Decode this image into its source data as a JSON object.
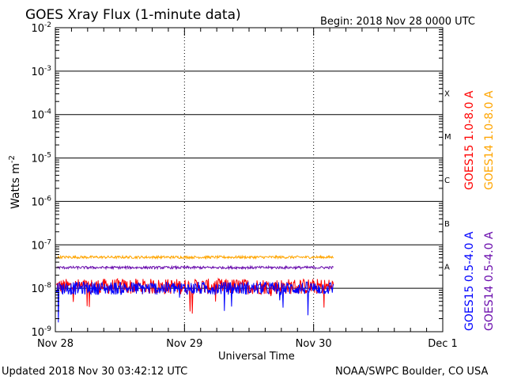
{
  "chart_data": {
    "type": "line",
    "title": "GOES Xray Flux (1-minute data)",
    "begin_label": "Begin:  2018 Nov 28 0000 UTC",
    "xlabel": "Universal Time",
    "ylabel": "Watts m",
    "ylabel_exponent": "-2",
    "x_ticks": [
      "Nov 28",
      "Nov 29",
      "Nov 30",
      "Dec 1"
    ],
    "xlim_days": [
      0,
      3
    ],
    "y_log_scale": true,
    "ylim": [
      1e-09,
      0.01
    ],
    "y_ticks": [
      {
        "base": "10",
        "exp": "-9"
      },
      {
        "base": "10",
        "exp": "-8"
      },
      {
        "base": "10",
        "exp": "-7"
      },
      {
        "base": "10",
        "exp": "-6"
      },
      {
        "base": "10",
        "exp": "-5"
      },
      {
        "base": "10",
        "exp": "-4"
      },
      {
        "base": "10",
        "exp": "-3"
      },
      {
        "base": "10",
        "exp": "-2"
      }
    ],
    "flare_classes": [
      "A",
      "B",
      "C",
      "M",
      "X"
    ],
    "data_end_day": 2.155,
    "series": [
      {
        "name": "GOES15 1.0-8.0 A",
        "color": "#ff0000",
        "level": 1.1e-08,
        "noise_decades": 0.18
      },
      {
        "name": "GOES14 1.0-8.0 A",
        "color": "#ffa500",
        "level": 5.2e-08,
        "noise_decades": 0.03
      },
      {
        "name": "GOES15 0.5-4.0 A",
        "color": "#0000ff",
        "level": 1e-08,
        "noise_decades": 0.15
      },
      {
        "name": "GOES14 0.5-4.0 A",
        "color": "#6a0dad",
        "level": 3e-08,
        "noise_decades": 0.03
      }
    ],
    "legend_right": [
      {
        "label": "GOES15 1.0-8.0 A",
        "color": "#ff0000"
      },
      {
        "label": "GOES14 1.0-8.0 A",
        "color": "#ffa500"
      },
      {
        "label": "GOES15 0.5-4.0 A",
        "color": "#0000ff"
      },
      {
        "label": "GOES14 0.5-4.0 A",
        "color": "#6a0dad"
      }
    ]
  },
  "footer": {
    "updated": "Updated 2018 Nov 30 03:42:12 UTC",
    "source": "NOAA/SWPC Boulder, CO USA"
  }
}
